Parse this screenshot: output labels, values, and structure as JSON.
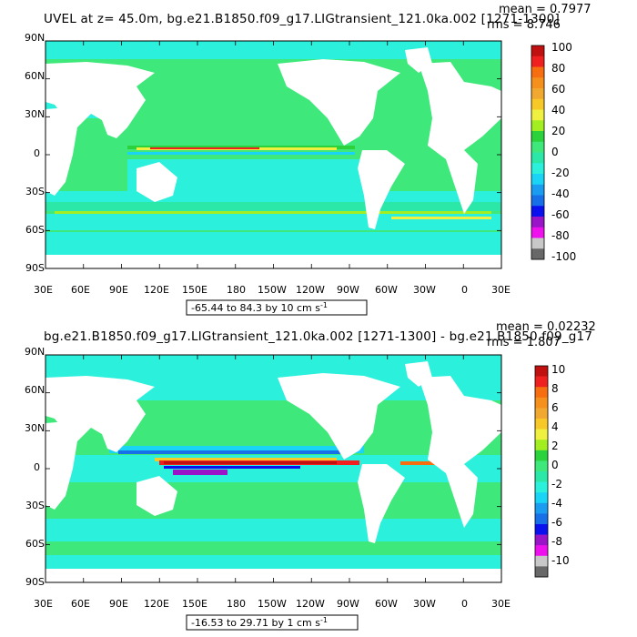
{
  "palette": {
    "background": "#ffffff",
    "land": "#ffffff",
    "ocean_fill": "#3ee87a",
    "colorbar_colors": [
      "#686868",
      "#c8c8c8",
      "#ee11ee",
      "#9a14c8",
      "#0a10ee",
      "#1870e8",
      "#1a9cf0",
      "#1ad4f6",
      "#2af0dc",
      "#2ce8a8",
      "#3ee87a",
      "#2cd23c",
      "#a2ee20",
      "#f0f040",
      "#f6c828",
      "#f0a830",
      "#f6901c",
      "#f66e10",
      "#f02020",
      "#c01010"
    ]
  },
  "chart_data": [
    {
      "type": "heatmap",
      "title": "UVEL at z=   45.0m, bg.e21.B1850.f09_g17.LIGtransient_121.0ka.002 [1271-1300]",
      "stat_mean": "mean = 0.7977",
      "stat_rms": "rms = 8.746",
      "x_ticks": [
        "30E",
        "60E",
        "90E",
        "120E",
        "150E",
        "180",
        "150W",
        "120W",
        "90W",
        "60W",
        "30W",
        "0",
        "30E"
      ],
      "y_ticks": [
        "90N",
        "60N",
        "30N",
        "0",
        "30S",
        "60S",
        "90S"
      ],
      "xlim": [
        30,
        390
      ],
      "ylim": [
        -90,
        90
      ],
      "range_label": "-65.44 to 84.3 by 10 cm s",
      "range_exponent": "-1",
      "colorbar_ticks": [
        "100",
        "80",
        "60",
        "40",
        "20",
        "0",
        "-20",
        "-40",
        "-60",
        "-80",
        "-100"
      ],
      "colorbar_range": [
        -100,
        100
      ]
    },
    {
      "type": "heatmap",
      "title": "bg.e21.B1850.f09_g17.LIGtransient_121.0ka.002 [1271-1300] - bg.e21.B1850.f09_g17",
      "stat_mean": "mean = 0.02232",
      "stat_rms": "rms = 1.807",
      "x_ticks": [
        "30E",
        "60E",
        "90E",
        "120E",
        "150E",
        "180",
        "150W",
        "120W",
        "90W",
        "60W",
        "30W",
        "0",
        "30E"
      ],
      "y_ticks": [
        "90N",
        "60N",
        "30N",
        "0",
        "30S",
        "60S",
        "90S"
      ],
      "xlim": [
        30,
        390
      ],
      "ylim": [
        -90,
        90
      ],
      "range_label": "-16.53 to 29.71 by 1 cm s",
      "range_exponent": "-1",
      "colorbar_ticks": [
        "10",
        "8",
        "6",
        "4",
        "2",
        "0",
        "-2",
        "-4",
        "-6",
        "-8",
        "-10"
      ],
      "colorbar_range": [
        -10,
        10
      ]
    }
  ]
}
